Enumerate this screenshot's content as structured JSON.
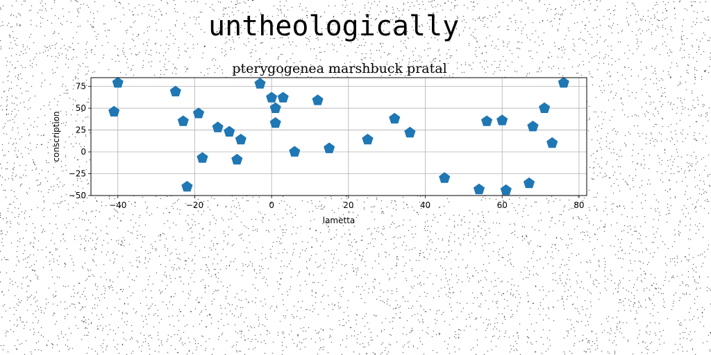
{
  "page_title": "untheologically",
  "chart_data": {
    "type": "scatter",
    "title": "pterygogenea marshbuck pratal",
    "xlabel": "lametta",
    "ylabel": "conscription",
    "xlim": [
      -47,
      82
    ],
    "ylim": [
      -50,
      85
    ],
    "xticks": [
      -40,
      -20,
      0,
      20,
      40,
      60,
      80
    ],
    "yticks": [
      -50,
      -25,
      0,
      25,
      50,
      75
    ],
    "grid": true,
    "marker": "pentagon",
    "color": "#1f77b4",
    "series": [
      {
        "points": [
          {
            "x": -40,
            "y": 79
          },
          {
            "x": -41,
            "y": 46
          },
          {
            "x": -25,
            "y": 69
          },
          {
            "x": -23,
            "y": 35
          },
          {
            "x": -22,
            "y": -40
          },
          {
            "x": -19,
            "y": 44
          },
          {
            "x": -18,
            "y": -7
          },
          {
            "x": -14,
            "y": 28
          },
          {
            "x": -11,
            "y": 23
          },
          {
            "x": -9,
            "y": -9
          },
          {
            "x": -8,
            "y": 14
          },
          {
            "x": -3,
            "y": 78
          },
          {
            "x": 0,
            "y": 62
          },
          {
            "x": 1,
            "y": 50
          },
          {
            "x": 1,
            "y": 33
          },
          {
            "x": 3,
            "y": 62
          },
          {
            "x": 6,
            "y": 0
          },
          {
            "x": 12,
            "y": 59
          },
          {
            "x": 15,
            "y": 4
          },
          {
            "x": 25,
            "y": 14
          },
          {
            "x": 32,
            "y": 38
          },
          {
            "x": 36,
            "y": 22
          },
          {
            "x": 45,
            "y": -30
          },
          {
            "x": 54,
            "y": -43
          },
          {
            "x": 56,
            "y": 35
          },
          {
            "x": 60,
            "y": 36
          },
          {
            "x": 61,
            "y": -44
          },
          {
            "x": 67,
            "y": -36
          },
          {
            "x": 68,
            "y": 29
          },
          {
            "x": 71,
            "y": 50
          },
          {
            "x": 73,
            "y": 10
          },
          {
            "x": 76,
            "y": 79
          }
        ]
      }
    ]
  }
}
